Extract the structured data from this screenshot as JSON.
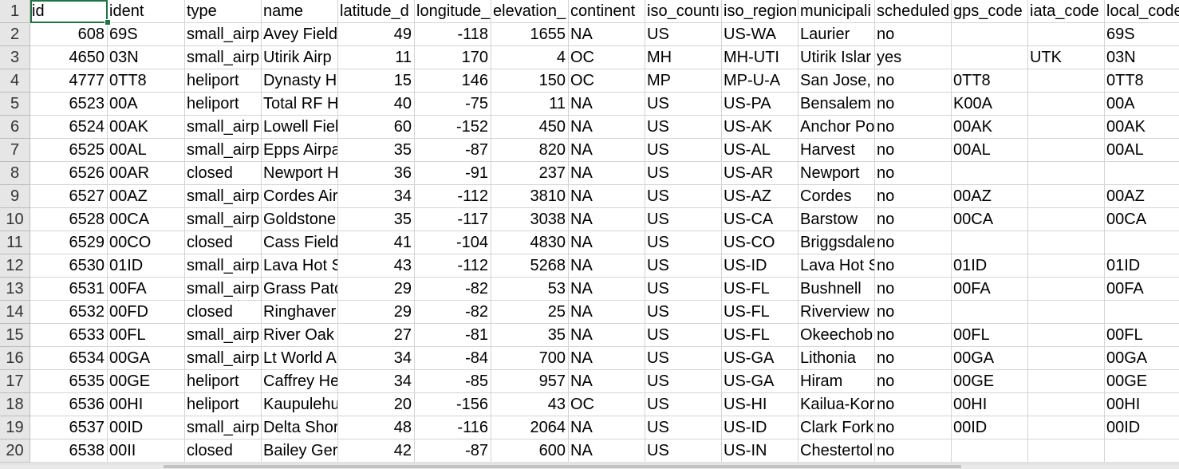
{
  "selected_cell": "A1",
  "row_headers": [
    "1",
    "2",
    "3",
    "4",
    "5",
    "6",
    "7",
    "8",
    "9",
    "10",
    "11",
    "12",
    "13",
    "14",
    "15",
    "16",
    "17",
    "18",
    "19",
    "20"
  ],
  "columns": [
    {
      "header": "id",
      "align": "right"
    },
    {
      "header": "ident",
      "align": "left"
    },
    {
      "header": "type",
      "align": "left"
    },
    {
      "header": "name",
      "align": "left"
    },
    {
      "header": "latitude_d",
      "align": "right"
    },
    {
      "header": "longitude_",
      "align": "right"
    },
    {
      "header": "elevation_",
      "align": "right"
    },
    {
      "header": "continent",
      "align": "left"
    },
    {
      "header": "iso_countı",
      "align": "left"
    },
    {
      "header": "iso_region",
      "align": "left"
    },
    {
      "header": "municipali",
      "align": "left"
    },
    {
      "header": "scheduled",
      "align": "left"
    },
    {
      "header": "gps_code",
      "align": "left"
    },
    {
      "header": "iata_code",
      "align": "left"
    },
    {
      "header": "local_code",
      "align": "left"
    }
  ],
  "rows": [
    [
      "608",
      "69S",
      "small_airp",
      "Avey Field",
      "49",
      "-118",
      "1655",
      "NA",
      "US",
      "US-WA",
      "Laurier",
      "no",
      "",
      "",
      "69S"
    ],
    [
      "4650",
      "03N",
      "small_airp",
      "Utirik Airp",
      "11",
      "170",
      "4",
      "OC",
      "MH",
      "MH-UTI",
      "Utirik Islar",
      "yes",
      "",
      "UTK",
      "03N"
    ],
    [
      "4777",
      "0TT8",
      "heliport",
      "Dynasty H",
      "15",
      "146",
      "150",
      "OC",
      "MP",
      "MP-U-A",
      "San Jose, T",
      "no",
      "0TT8",
      "",
      "0TT8"
    ],
    [
      "6523",
      "00A",
      "heliport",
      "Total RF H",
      "40",
      "-75",
      "11",
      "NA",
      "US",
      "US-PA",
      "Bensalem",
      "no",
      "K00A",
      "",
      "00A"
    ],
    [
      "6524",
      "00AK",
      "small_airp",
      "Lowell Fiel",
      "60",
      "-152",
      "450",
      "NA",
      "US",
      "US-AK",
      "Anchor Po",
      "no",
      "00AK",
      "",
      "00AK"
    ],
    [
      "6525",
      "00AL",
      "small_airp",
      "Epps Airpa",
      "35",
      "-87",
      "820",
      "NA",
      "US",
      "US-AL",
      "Harvest",
      "no",
      "00AL",
      "",
      "00AL"
    ],
    [
      "6526",
      "00AR",
      "closed",
      "Newport H",
      "36",
      "-91",
      "237",
      "NA",
      "US",
      "US-AR",
      "Newport",
      "no",
      "",
      "",
      ""
    ],
    [
      "6527",
      "00AZ",
      "small_airp",
      "Cordes Air",
      "34",
      "-112",
      "3810",
      "NA",
      "US",
      "US-AZ",
      "Cordes",
      "no",
      "00AZ",
      "",
      "00AZ"
    ],
    [
      "6528",
      "00CA",
      "small_airp",
      "Goldstone",
      "35",
      "-117",
      "3038",
      "NA",
      "US",
      "US-CA",
      "Barstow",
      "no",
      "00CA",
      "",
      "00CA"
    ],
    [
      "6529",
      "00CO",
      "closed",
      "Cass Field",
      "41",
      "-104",
      "4830",
      "NA",
      "US",
      "US-CO",
      "Briggsdale",
      "no",
      "",
      "",
      ""
    ],
    [
      "6530",
      "01ID",
      "small_airp",
      "Lava Hot S",
      "43",
      "-112",
      "5268",
      "NA",
      "US",
      "US-ID",
      "Lava Hot S",
      "no",
      "01ID",
      "",
      "01ID"
    ],
    [
      "6531",
      "00FA",
      "small_airp",
      "Grass Patc",
      "29",
      "-82",
      "53",
      "NA",
      "US",
      "US-FL",
      "Bushnell",
      "no",
      "00FA",
      "",
      "00FA"
    ],
    [
      "6532",
      "00FD",
      "closed",
      "Ringhaver",
      "29",
      "-82",
      "25",
      "NA",
      "US",
      "US-FL",
      "Riverview",
      "no",
      "",
      "",
      ""
    ],
    [
      "6533",
      "00FL",
      "small_airp",
      "River Oak",
      "27",
      "-81",
      "35",
      "NA",
      "US",
      "US-FL",
      "Okeechob",
      "no",
      "00FL",
      "",
      "00FL"
    ],
    [
      "6534",
      "00GA",
      "small_airp",
      "Lt World A",
      "34",
      "-84",
      "700",
      "NA",
      "US",
      "US-GA",
      "Lithonia",
      "no",
      "00GA",
      "",
      "00GA"
    ],
    [
      "6535",
      "00GE",
      "heliport",
      "Caffrey He",
      "34",
      "-85",
      "957",
      "NA",
      "US",
      "US-GA",
      "Hiram",
      "no",
      "00GE",
      "",
      "00GE"
    ],
    [
      "6536",
      "00HI",
      "heliport",
      "Kaupulehu",
      "20",
      "-156",
      "43",
      "OC",
      "US",
      "US-HI",
      "Kailua-Kor",
      "no",
      "00HI",
      "",
      "00HI"
    ],
    [
      "6537",
      "00ID",
      "small_airp",
      "Delta Shor",
      "48",
      "-116",
      "2064",
      "NA",
      "US",
      "US-ID",
      "Clark Fork",
      "no",
      "00ID",
      "",
      "00ID"
    ],
    [
      "6538",
      "00II",
      "closed",
      "Bailey Ger",
      "42",
      "-87",
      "600",
      "NA",
      "US",
      "US-IN",
      "Chestertol",
      "no",
      "",
      "",
      ""
    ]
  ]
}
